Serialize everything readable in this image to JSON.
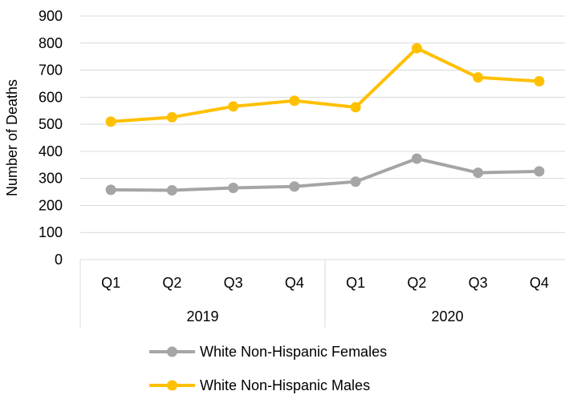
{
  "chart_data": {
    "type": "line",
    "ylabel": "Number of Deaths",
    "ylim": [
      0,
      900
    ],
    "yticks": [
      0,
      100,
      200,
      300,
      400,
      500,
      600,
      700,
      800,
      900
    ],
    "categories": [
      "Q1",
      "Q2",
      "Q3",
      "Q4",
      "Q1",
      "Q2",
      "Q3",
      "Q4"
    ],
    "groups": [
      {
        "label": "2019",
        "count": 4
      },
      {
        "label": "2020",
        "count": 4
      }
    ],
    "grid": true,
    "legend_position": "bottom",
    "series": [
      {
        "name": "White Non-Hispanic Females",
        "color": "#A5A5A5",
        "values": [
          258,
          256,
          265,
          270,
          288,
          373,
          321,
          326
        ]
      },
      {
        "name": "White Non-Hispanic Males",
        "color": "#FFC000",
        "values": [
          510,
          526,
          566,
          587,
          563,
          781,
          673,
          659
        ]
      }
    ]
  }
}
